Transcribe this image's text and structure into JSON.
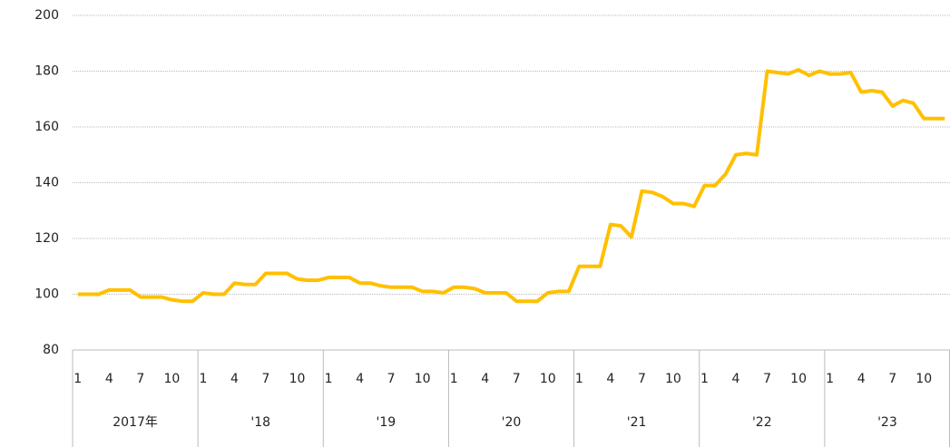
{
  "chart_data": {
    "type": "line",
    "categories": [
      "1",
      null,
      null,
      "4",
      null,
      null,
      "7",
      null,
      null,
      "10",
      null,
      null,
      "1",
      null,
      null,
      "4",
      null,
      null,
      "7",
      null,
      null,
      "10",
      null,
      null,
      "1",
      null,
      null,
      "4",
      null,
      null,
      "7",
      null,
      null,
      "10",
      null,
      null,
      "1",
      null,
      null,
      "4",
      null,
      null,
      "7",
      null,
      null,
      "10",
      null,
      null,
      "1",
      null,
      null,
      "4",
      null,
      null,
      "7",
      null,
      null,
      "10",
      null,
      null,
      "1",
      null,
      null,
      "4",
      null,
      null,
      "7",
      null,
      null,
      "10",
      null,
      null,
      "1",
      null,
      null,
      "4",
      null,
      null,
      "7",
      null,
      null,
      "10",
      null,
      null
    ],
    "year_labels": [
      "2017年",
      "'18",
      "'19",
      "'20",
      "'21",
      "'22",
      "'23"
    ],
    "values": [
      100,
      100,
      100,
      101.5,
      101.5,
      101.5,
      99,
      99,
      99,
      98,
      97.5,
      97.5,
      100.5,
      100,
      100,
      104,
      103.5,
      103.5,
      107.5,
      107.5,
      107.5,
      105.5,
      105,
      105,
      106,
      106,
      106,
      104,
      104,
      103,
      102.5,
      102.5,
      102.5,
      101,
      101,
      100.5,
      102.5,
      102.5,
      102,
      100.5,
      100.5,
      100.5,
      97.5,
      97.5,
      97.5,
      100.5,
      101,
      101,
      110,
      110,
      110,
      125,
      124.5,
      120.5,
      137,
      136.5,
      135,
      132.5,
      132.5,
      131.5,
      139,
      139,
      143,
      150,
      150.5,
      150,
      180,
      179.5,
      179,
      180.5,
      178.5,
      180,
      179,
      179,
      179.5,
      172.5,
      173,
      172.5,
      167.5,
      169.5,
      168.5,
      163,
      163,
      163
    ],
    "color": "#ffc000",
    "ylim": [
      80,
      200
    ],
    "yticks": [
      80,
      100,
      120,
      140,
      160,
      180,
      200
    ],
    "grid": true
  }
}
